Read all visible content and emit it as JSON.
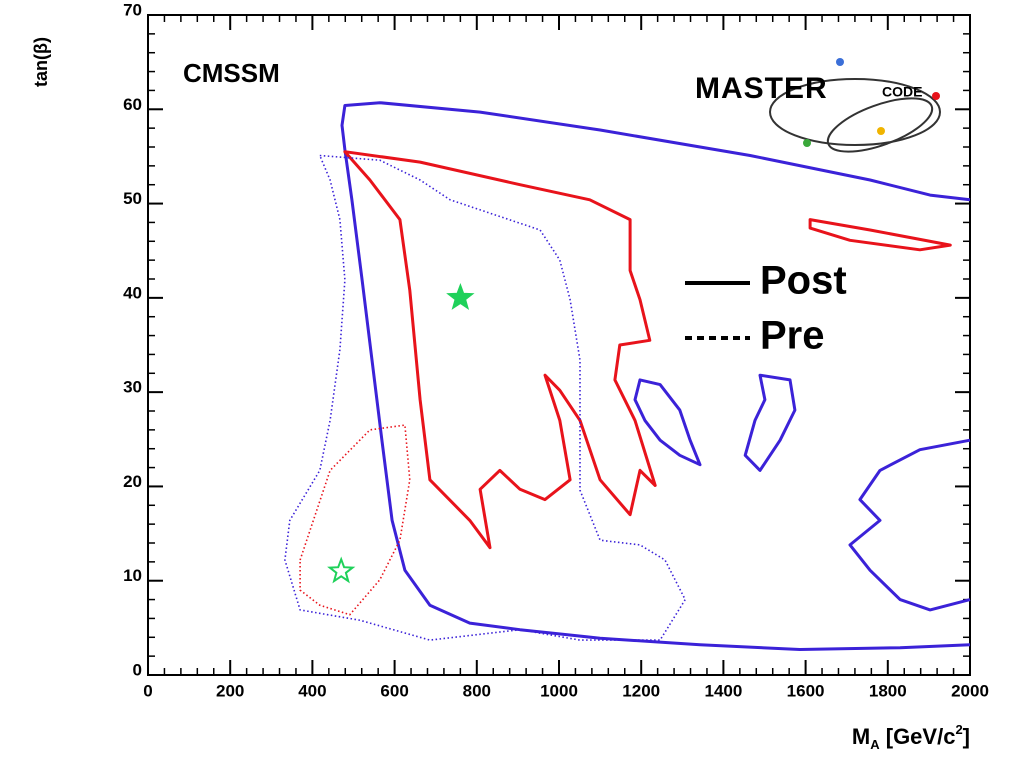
{
  "chart_data": {
    "type": "contour",
    "annotation": "CMSSM",
    "logo": {
      "main": "MASTER",
      "small": "CODE"
    },
    "y_label": "tan(β)",
    "x_label_parts": [
      {
        "text": "M",
        "shift": "none"
      },
      {
        "text": "A",
        "shift": "sub"
      },
      {
        "text": " [GeV/c",
        "shift": "none"
      },
      {
        "text": "2",
        "shift": "super"
      },
      {
        "text": "]",
        "shift": "none"
      }
    ],
    "xlim": [
      0,
      2000
    ],
    "ylim": [
      0,
      70
    ],
    "xticks": [
      0,
      200,
      400,
      600,
      800,
      1000,
      1200,
      1400,
      1600,
      1800,
      2000
    ],
    "yticks": [
      0,
      10,
      20,
      30,
      40,
      50,
      60,
      70
    ],
    "legend": [
      {
        "label": "Post",
        "dash": "solid"
      },
      {
        "label": "Pre",
        "dash": "dashed"
      }
    ],
    "contours": [
      {
        "color": "#3b22d8",
        "dash": "solid",
        "closed": false,
        "x": [
          2000,
          1830,
          1586,
          1343,
          1100,
          905,
          783,
          686,
          625,
          594,
          569,
          545,
          521,
          496,
          479,
          472,
          479,
          564,
          808,
          1100,
          1465,
          1757,
          1903,
          2000
        ],
        "y": [
          3.2,
          2.9,
          2.7,
          3.2,
          3.9,
          4.8,
          5.5,
          7.4,
          11.1,
          16.4,
          24.9,
          33.4,
          41.9,
          50.4,
          55.7,
          58.3,
          60.4,
          60.7,
          59.7,
          57.8,
          55.1,
          52.5,
          50.9,
          50.4
        ]
      },
      {
        "color": "#3b22d8",
        "dash": "solid",
        "closed": true,
        "x": [
          1197,
          1246,
          1294,
          1319,
          1343,
          1294,
          1246,
          1209,
          1185
        ],
        "y": [
          31.3,
          30.8,
          28.1,
          24.9,
          22.3,
          23.3,
          24.9,
          27.0,
          29.2
        ]
      },
      {
        "color": "#3b22d8",
        "dash": "solid",
        "closed": true,
        "x": [
          1489,
          1562,
          1574,
          1538,
          1489,
          1453,
          1477,
          1501
        ],
        "y": [
          31.8,
          31.3,
          28.1,
          24.9,
          21.7,
          23.3,
          27.0,
          29.2
        ]
      },
      {
        "color": "#3b22d8",
        "dash": "solid",
        "closed": false,
        "x": [
          2000,
          1878,
          1781,
          1732,
          1781,
          1708,
          1757,
          1830,
          1903,
          2000
        ],
        "y": [
          24.9,
          23.9,
          21.7,
          18.6,
          16.4,
          13.8,
          11.1,
          8.0,
          6.9,
          8.0
        ]
      },
      {
        "color": "#e8131b",
        "dash": "solid",
        "closed": true,
        "x": [
          479,
          662,
          905,
          1075,
          1173,
          1173,
          1197,
          1221,
          1148,
          1136,
          1185,
          1234,
          1197,
          1173,
          1100,
          1051,
          1002,
          966,
          1002,
          1027,
          966,
          905,
          856,
          808,
          832,
          783,
          686,
          662,
          637,
          613,
          540
        ],
        "y": [
          55.5,
          54.4,
          52.0,
          50.4,
          48.3,
          42.9,
          39.8,
          35.5,
          35.0,
          31.3,
          27.0,
          20.1,
          21.7,
          17.0,
          20.7,
          27.0,
          30.2,
          31.8,
          27.0,
          20.7,
          18.6,
          19.7,
          21.7,
          19.7,
          13.5,
          16.4,
          20.7,
          29.2,
          40.8,
          48.3,
          52.5
        ]
      },
      {
        "color": "#e8131b",
        "dash": "solid",
        "closed": true,
        "x": [
          1611,
          1757,
          1952,
          1878,
          1708,
          1611
        ],
        "y": [
          48.3,
          47.2,
          45.6,
          45.1,
          46.1,
          47.4
        ]
      },
      {
        "color": "#3b22d8",
        "dash": "dotted",
        "closed": true,
        "x": [
          418,
          564,
          662,
          735,
          954,
          1002,
          1027,
          1051,
          1051,
          1100,
          1197,
          1258,
          1307,
          1246,
          1051,
          905,
          686,
          516,
          370,
          333,
          345,
          418,
          443,
          467,
          479,
          467,
          443
        ],
        "y": [
          55.1,
          54.6,
          52.5,
          50.4,
          47.2,
          44.0,
          39.8,
          33.4,
          19.6,
          14.3,
          13.8,
          12.2,
          8.0,
          3.7,
          3.7,
          4.8,
          3.7,
          5.8,
          6.9,
          12.2,
          16.4,
          21.7,
          27.0,
          34.5,
          41.9,
          48.3,
          52.5
        ]
      },
      {
        "color": "#e8131b",
        "dash": "dotted",
        "closed": true,
        "x": [
          370,
          443,
          540,
          625,
          637,
          613,
          564,
          491,
          418,
          370
        ],
        "y": [
          12.2,
          21.7,
          26.0,
          26.5,
          20.7,
          14.3,
          10.1,
          6.4,
          7.4,
          9.0
        ]
      }
    ],
    "points": [
      {
        "x": 760,
        "y": 40,
        "color": "#1fd15a",
        "filled": true
      },
      {
        "x": 470,
        "y": 11,
        "color": "#1fd15a",
        "filled": false
      }
    ]
  }
}
